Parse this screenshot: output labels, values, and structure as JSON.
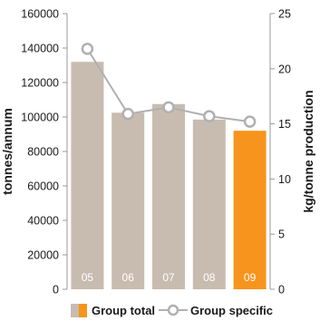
{
  "chart_data": {
    "type": "bar",
    "categories": [
      "05",
      "06",
      "07",
      "08",
      "09"
    ],
    "series": [
      {
        "name": "Group total",
        "type": "bar",
        "axis": "left",
        "values": [
          132000,
          102500,
          107500,
          98500,
          92000
        ],
        "color": "#c8bcb0",
        "highlight_color": "#f7941d",
        "highlight_index": 4
      },
      {
        "name": "Group specific",
        "type": "line",
        "axis": "right",
        "values": [
          21.8,
          15.9,
          16.5,
          15.7,
          15.2
        ],
        "color": "#b0b0b0"
      }
    ],
    "ylabel": "tonnes/annum",
    "y2label": "kg/tonne production",
    "ylim": [
      0,
      160000
    ],
    "y2lim": [
      0,
      25
    ],
    "yticks": [
      "0",
      "20000",
      "40000",
      "60000",
      "80000",
      "100000",
      "120000",
      "140000",
      "160000"
    ],
    "y2ticks": [
      "0",
      "5",
      "10",
      "15",
      "20",
      "25"
    ],
    "grid": false,
    "legend": "bottom"
  }
}
